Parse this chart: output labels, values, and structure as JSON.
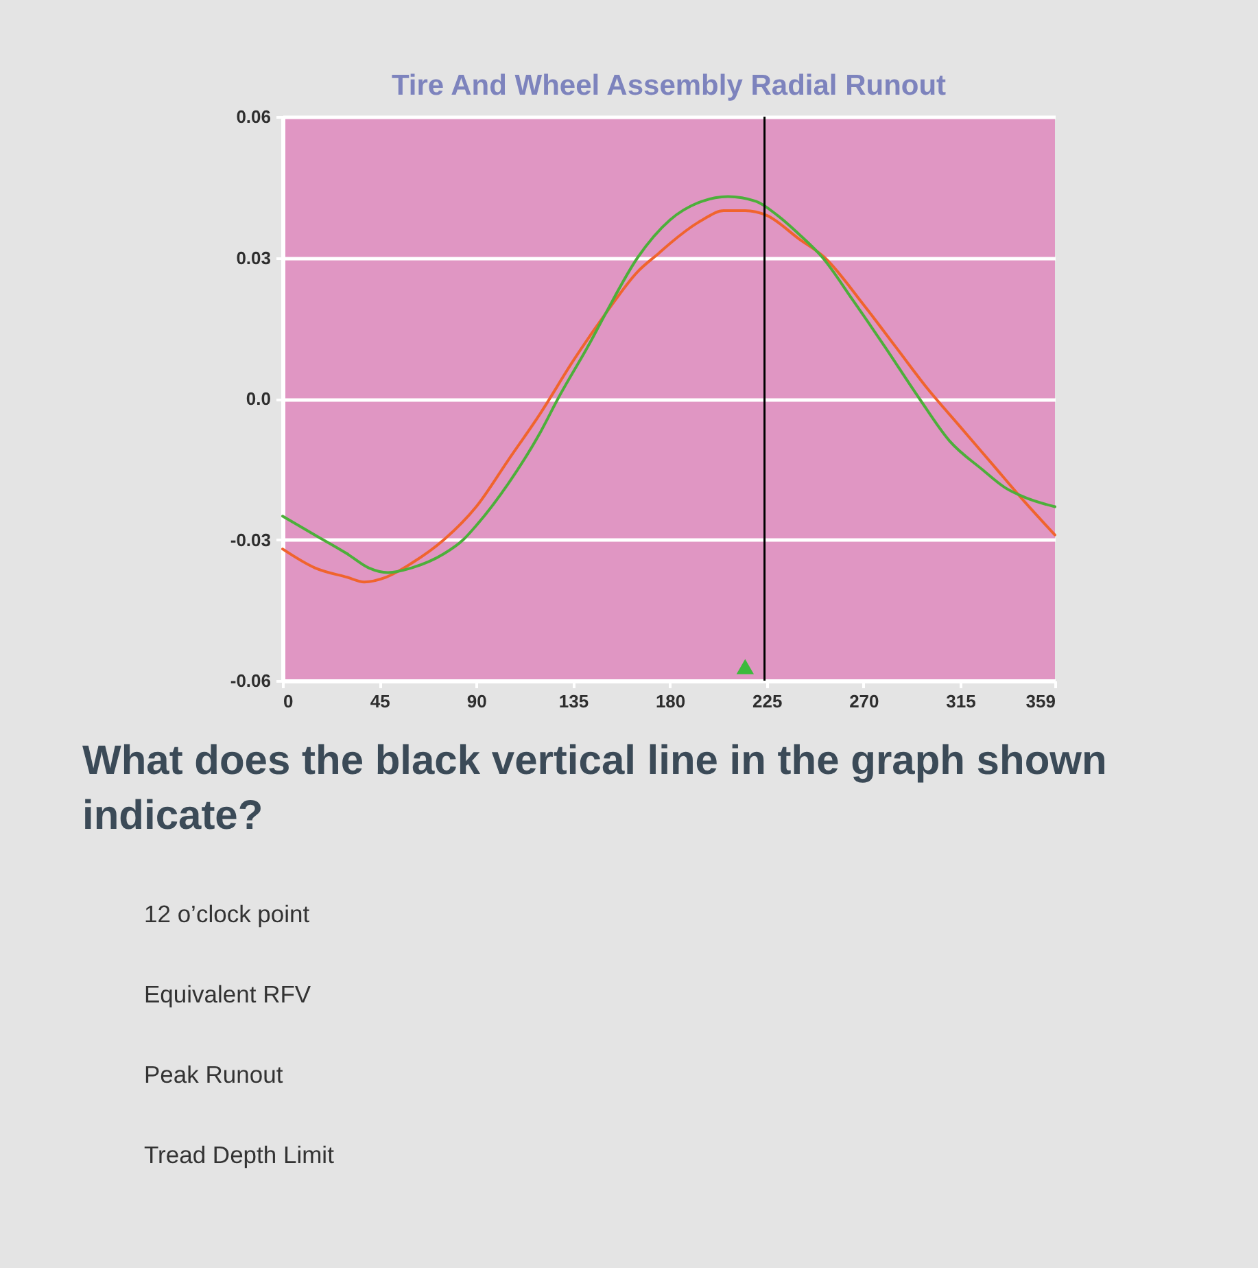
{
  "chart_data": {
    "type": "line",
    "title": "Tire And Wheel Assembly Radial Runout",
    "series": [
      {
        "color": "#f0642d",
        "x": [
          0,
          15,
          30,
          38,
          48,
          60,
          75,
          90,
          105,
          120,
          135,
          150,
          165,
          175,
          180,
          195,
          205,
          215,
          225,
          240,
          252,
          270,
          285,
          300,
          315,
          330,
          345,
          359
        ],
        "values": [
          -0.032,
          -0.036,
          -0.038,
          -0.039,
          -0.038,
          -0.035,
          -0.03,
          -0.023,
          -0.013,
          -0.003,
          0.008,
          0.018,
          0.027,
          0.031,
          0.033,
          0.038,
          0.04,
          0.04,
          0.039,
          0.034,
          0.03,
          0.02,
          0.011,
          0.002,
          -0.006,
          -0.014,
          -0.022,
          -0.029
        ]
      },
      {
        "color": "#4caf3a",
        "x": [
          0,
          15,
          30,
          40,
          49,
          60,
          75,
          84,
          90,
          105,
          120,
          128,
          143,
          150,
          165,
          180,
          195,
          207,
          220,
          230,
          240,
          251,
          265,
          280,
          296,
          310,
          325,
          336,
          345,
          359
        ],
        "values": [
          -0.025,
          -0.029,
          -0.033,
          -0.036,
          -0.037,
          -0.036,
          -0.033,
          -0.03,
          -0.027,
          -0.018,
          -0.007,
          0.0,
          0.012,
          0.018,
          0.03,
          0.038,
          0.042,
          0.043,
          0.042,
          0.039,
          0.035,
          0.03,
          0.021,
          0.011,
          0.0,
          -0.009,
          -0.015,
          -0.019,
          -0.021,
          -0.023
        ]
      },
      {
        "type": "scatter",
        "marker": "triangle",
        "color": "#3cba3c",
        "x": [
          215
        ],
        "values": [
          -0.057
        ]
      }
    ],
    "xlim": [
      0,
      359
    ],
    "xticks": [
      0,
      45,
      90,
      135,
      180,
      225,
      270,
      315,
      359
    ],
    "ylim": [
      -0.06,
      0.06
    ],
    "yticks": [
      -0.06,
      -0.03,
      {
        "value": 0,
        "label": "0.0"
      },
      0.03,
      0.06
    ],
    "grid": "y",
    "marker": "none",
    "line_style": "solid",
    "ref_lines": [
      {
        "axis": "x",
        "value": 224,
        "color": "#000000"
      }
    ],
    "annotations": [
      "What does the black vertical line in the graph shown indicate?",
      "12 o’clock point",
      "Equivalent RFV",
      "Peak Runout",
      "Tread Depth Limit"
    ]
  }
}
